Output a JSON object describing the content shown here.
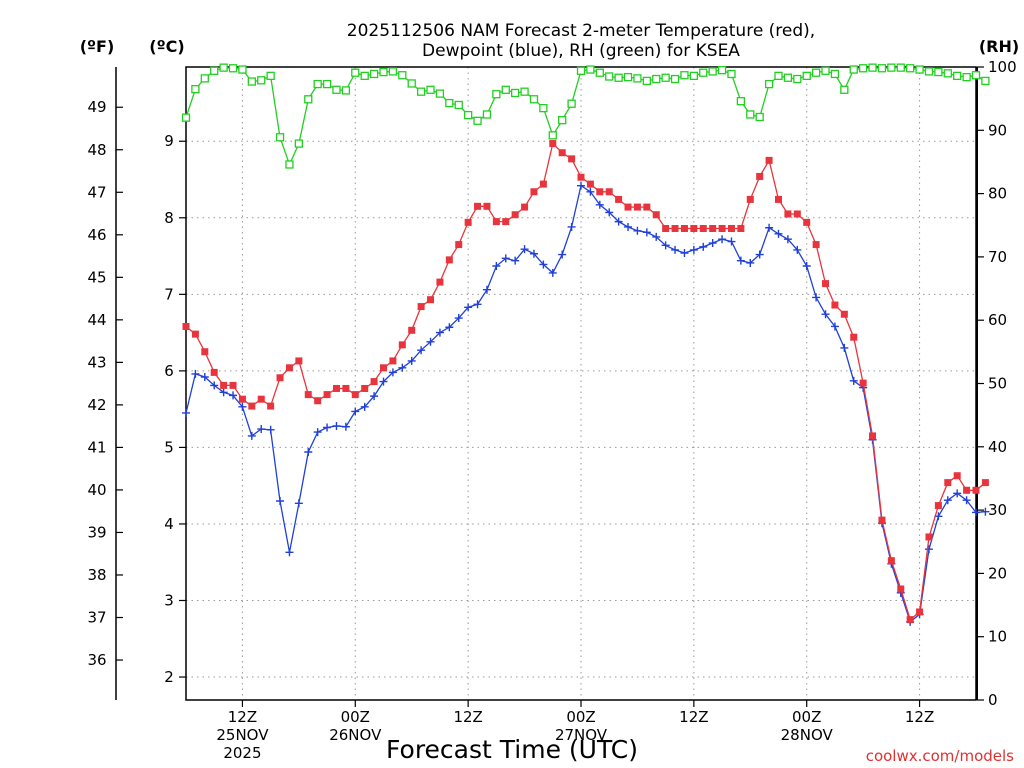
{
  "chart_data": {
    "type": "line",
    "title_line1": "2025112506 NAM Forecast 2-meter Temperature (red),",
    "title_line2": "Dewpoint (blue), RH (green) for KSEA",
    "xlabel": "Forecast Time (UTC)",
    "credit": "coolwx.com/models",
    "units": {
      "fahrenheit": "(ºF)",
      "celsius": "(ºC)",
      "rh": "(RH)"
    },
    "x_step_hours": 1,
    "x_range_hours": [
      6,
      90
    ],
    "x_ticks": [
      {
        "hour": 12,
        "lines": [
          "12Z",
          "25NOV",
          "2025"
        ]
      },
      {
        "hour": 24,
        "lines": [
          "00Z",
          "26NOV"
        ]
      },
      {
        "hour": 36,
        "lines": [
          "12Z"
        ]
      },
      {
        "hour": 48,
        "lines": [
          "00Z",
          "27NOV"
        ]
      },
      {
        "hour": 60,
        "lines": [
          "12Z"
        ]
      },
      {
        "hour": 72,
        "lines": [
          "00Z",
          "28NOV"
        ]
      },
      {
        "hour": 84,
        "lines": [
          "12Z"
        ]
      }
    ],
    "celsius_axis": {
      "ticks": [
        2,
        3,
        4,
        5,
        6,
        7,
        8,
        9
      ],
      "range": [
        1.7,
        9.97
      ]
    },
    "fahrenheit_axis": {
      "ticks": [
        36,
        37,
        38,
        39,
        40,
        41,
        42,
        43,
        44,
        45,
        46,
        47,
        48,
        49
      ]
    },
    "rh_axis": {
      "ticks": [
        0,
        10,
        20,
        30,
        40,
        50,
        60,
        70,
        80,
        90,
        100
      ],
      "range": [
        0,
        100
      ]
    },
    "grid": true,
    "series": [
      {
        "key": "temperature",
        "axis": "celsius",
        "color": "#e8343c",
        "marker": "filled-square",
        "start_hour": 6,
        "values": [
          6.58,
          6.48,
          6.25,
          5.98,
          5.81,
          5.81,
          5.63,
          5.54,
          5.63,
          5.54,
          5.91,
          6.04,
          6.13,
          5.69,
          5.61,
          5.69,
          5.77,
          5.77,
          5.69,
          5.77,
          5.86,
          6.04,
          6.13,
          6.34,
          6.53,
          6.84,
          6.93,
          7.16,
          7.45,
          7.65,
          7.94,
          8.15,
          8.15,
          7.95,
          7.95,
          8.04,
          8.14,
          8.34,
          8.44,
          8.97,
          8.85,
          8.77,
          8.53,
          8.44,
          8.34,
          8.34,
          8.24,
          8.14,
          8.14,
          8.14,
          8.04,
          7.86,
          7.86,
          7.86,
          7.86,
          7.86,
          7.86,
          7.86,
          7.86,
          7.86,
          8.24,
          8.54,
          8.75,
          8.24,
          8.05,
          8.05,
          7.94,
          7.65,
          7.14,
          6.86,
          6.74,
          6.44,
          5.84,
          5.15,
          4.05,
          3.52,
          3.15,
          2.75,
          2.85,
          3.83,
          4.24,
          4.54,
          4.63,
          4.44,
          4.44,
          4.54
        ]
      },
      {
        "key": "dewpoint",
        "axis": "celsius",
        "color": "#2040d8",
        "marker": "plus",
        "start_hour": 6,
        "values": [
          5.45,
          5.96,
          5.92,
          5.81,
          5.72,
          5.68,
          5.53,
          5.15,
          5.24,
          5.23,
          4.3,
          3.63,
          4.27,
          4.94,
          5.2,
          5.26,
          5.28,
          5.27,
          5.47,
          5.53,
          5.67,
          5.86,
          5.98,
          6.04,
          6.13,
          6.27,
          6.38,
          6.5,
          6.57,
          6.69,
          6.83,
          6.87,
          7.06,
          7.37,
          7.47,
          7.44,
          7.59,
          7.53,
          7.39,
          7.28,
          7.52,
          7.88,
          8.42,
          8.34,
          8.17,
          8.07,
          7.95,
          7.88,
          7.83,
          7.81,
          7.75,
          7.64,
          7.58,
          7.54,
          7.58,
          7.62,
          7.67,
          7.72,
          7.69,
          7.44,
          7.41,
          7.52,
          7.87,
          7.79,
          7.72,
          7.58,
          7.37,
          6.96,
          6.74,
          6.58,
          6.3,
          5.87,
          5.78,
          5.1,
          4.01,
          3.48,
          3.1,
          2.72,
          2.82,
          3.67,
          4.1,
          4.31,
          4.4,
          4.31,
          4.15,
          4.16
        ]
      },
      {
        "key": "rh",
        "axis": "rh",
        "color": "#20d020",
        "marker": "open-square",
        "start_hour": 6,
        "values": [
          92,
          96.5,
          98.2,
          99.4,
          99.9,
          99.8,
          99.6,
          97.7,
          97.9,
          98.6,
          88.9,
          84.6,
          87.9,
          94.9,
          97.3,
          97.3,
          96.4,
          96.3,
          99.1,
          98.6,
          98.9,
          99.2,
          99.3,
          98.7,
          97.4,
          96.1,
          96.4,
          95.8,
          94.3,
          94,
          92.4,
          91.5,
          92.5,
          95.7,
          96.4,
          95.9,
          96.1,
          94.9,
          93.5,
          89.2,
          91.6,
          94.2,
          99.4,
          99.6,
          99.1,
          98.5,
          98.3,
          98.4,
          98.2,
          97.8,
          98.1,
          98.3,
          98.1,
          98.7,
          98.6,
          99.1,
          99.3,
          99.5,
          98.9,
          94.6,
          92.5,
          92.1,
          97.3,
          98.6,
          98.3,
          98.1,
          98.6,
          99.1,
          99.4,
          98.9,
          96.4,
          99.6,
          99.8,
          99.9,
          99.8,
          99.9,
          99.9,
          99.8,
          99.6,
          99.3,
          99.2,
          99.0,
          98.6,
          98.4,
          98.7,
          97.8
        ]
      }
    ]
  }
}
